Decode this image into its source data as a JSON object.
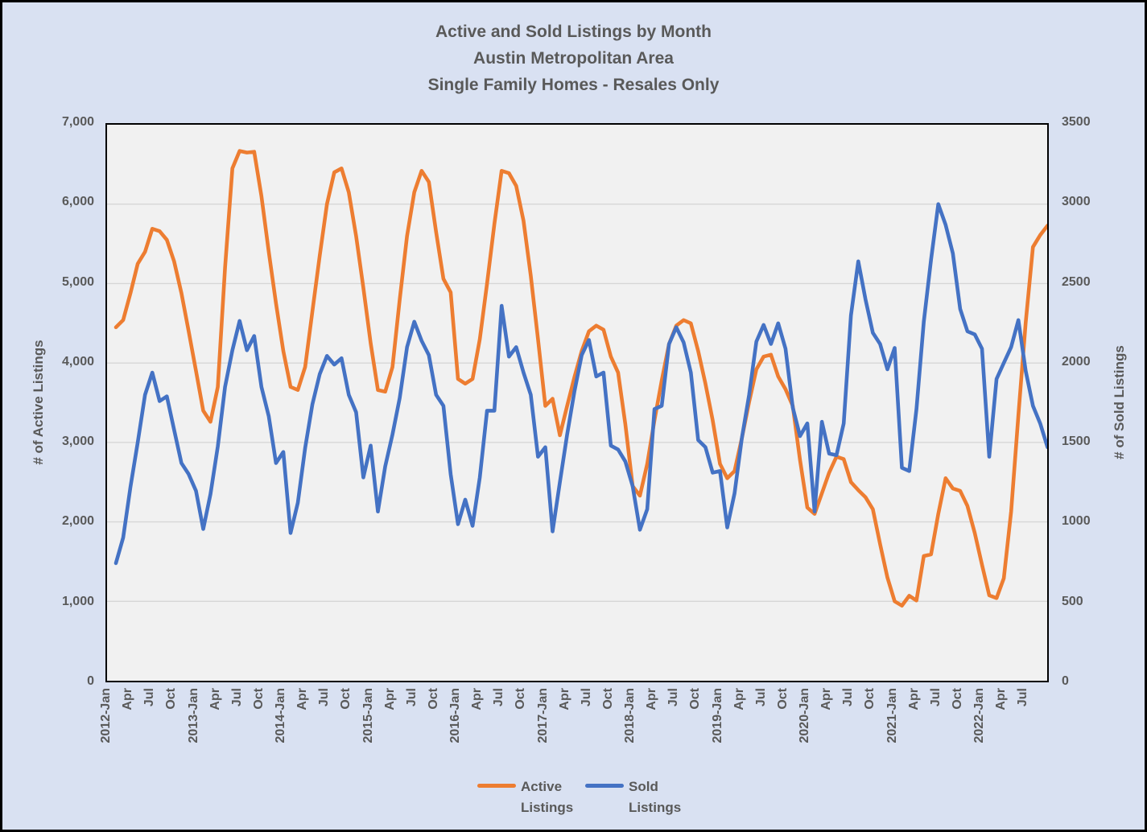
{
  "colors": {
    "page_background": "#d9e1f2",
    "plot_background": "#f1f1f1",
    "gridline": "#d6d6d6",
    "text": "#595959",
    "active_series": "#ED7D31",
    "sold_series": "#4472C4"
  },
  "chart_data": {
    "type": "line",
    "title_lines": [
      "Active and Sold Listings by Month",
      "Austin Metropolitan Area",
      "Single Family Homes - Resales Only"
    ],
    "left_axis": {
      "label": "# of Active Listings",
      "ticks": [
        "7,000",
        "6,000",
        "5,000",
        "4,000",
        "3,000",
        "2,000",
        "1,000",
        "0"
      ],
      "max": 7000
    },
    "right_axis": {
      "label": "# of Sold Listings",
      "ticks": [
        "3500",
        "3000",
        "2500",
        "2000",
        "1500",
        "1000",
        "500",
        "0"
      ],
      "max": 3500
    },
    "x_start_month": "2012-Jan",
    "x_end_month": "2022-Sep",
    "months_per_tick": 3,
    "x_tick_labels": [
      "2012-Jan",
      "Apr",
      "Jul",
      "Oct",
      "2013-Jan",
      "Apr",
      "Jul",
      "Oct",
      "2014-Jan",
      "Apr",
      "Jul",
      "Oct",
      "2015-Jan",
      "Apr",
      "Jul",
      "Oct",
      "2016-Jan",
      "Apr",
      "Jul",
      "Oct",
      "2017-Jan",
      "Apr",
      "Jul",
      "Oct",
      "2018-Jan",
      "Apr",
      "Jul",
      "Oct",
      "2019-Jan",
      "Apr",
      "Jul",
      "Oct",
      "2020-Jan",
      "Apr",
      "Jul",
      "Oct",
      "2021-Jan",
      "Apr",
      "Jul",
      "Oct",
      "2022-Jan",
      "Apr",
      "Jul"
    ],
    "grid": "horizontal-only",
    "legend_position": "bottom",
    "series": [
      {
        "name": "Active Listings",
        "legend_lines": [
          "Active",
          "Listings"
        ],
        "color": "#ED7D31",
        "axis": "left",
        "values": [
          4450,
          4540,
          4880,
          5250,
          5400,
          5690,
          5660,
          5550,
          5280,
          4880,
          4400,
          3900,
          3400,
          3260,
          3700,
          5200,
          6450,
          6670,
          6650,
          6660,
          6100,
          5400,
          4750,
          4150,
          3700,
          3660,
          3950,
          4650,
          5350,
          6000,
          6400,
          6450,
          6150,
          5600,
          4950,
          4250,
          3660,
          3640,
          3950,
          4800,
          5600,
          6150,
          6420,
          6280,
          5650,
          5060,
          4890,
          3800,
          3740,
          3800,
          4300,
          5000,
          5750,
          6420,
          6390,
          6230,
          5790,
          5100,
          4300,
          3460,
          3550,
          3090,
          3460,
          3820,
          4150,
          4400,
          4470,
          4420,
          4080,
          3880,
          3230,
          2450,
          2330,
          2730,
          3280,
          3780,
          4240,
          4470,
          4540,
          4500,
          4150,
          3740,
          3280,
          2730,
          2550,
          2640,
          3050,
          3510,
          3920,
          4080,
          4105,
          3830,
          3670,
          3460,
          2780,
          2180,
          2100,
          2360,
          2620,
          2820,
          2790,
          2500,
          2400,
          2310,
          2160,
          1720,
          1300,
          1000,
          945,
          1070,
          1010,
          1570,
          1590,
          2100,
          2550,
          2420,
          2390,
          2200,
          1860,
          1460,
          1075,
          1040,
          1290,
          2130,
          3340,
          4510,
          5460,
          5610,
          5730
        ]
      },
      {
        "name": "Sold Listings",
        "legend_lines": [
          "Sold",
          "Listings"
        ],
        "color": "#4472C4",
        "axis": "right",
        "values": [
          740,
          900,
          1220,
          1500,
          1800,
          1940,
          1760,
          1790,
          1580,
          1370,
          1300,
          1195,
          955,
          1175,
          1475,
          1850,
          2080,
          2265,
          2080,
          2170,
          1850,
          1665,
          1370,
          1440,
          930,
          1120,
          1465,
          1740,
          1930,
          2045,
          1990,
          2030,
          1800,
          1690,
          1280,
          1480,
          1065,
          1350,
          1550,
          1780,
          2100,
          2260,
          2140,
          2050,
          1800,
          1730,
          1300,
          985,
          1140,
          975,
          1280,
          1700,
          1700,
          2360,
          2040,
          2100,
          1940,
          1800,
          1410,
          1470,
          940,
          1250,
          1550,
          1820,
          2050,
          2145,
          1915,
          1940,
          1480,
          1455,
          1380,
          1225,
          950,
          1080,
          1710,
          1730,
          2120,
          2225,
          2130,
          1940,
          1515,
          1470,
          1310,
          1320,
          965,
          1180,
          1525,
          1800,
          2135,
          2240,
          2120,
          2250,
          2090,
          1720,
          1540,
          1620,
          1065,
          1630,
          1430,
          1420,
          1620,
          2300,
          2640,
          2400,
          2190,
          2120,
          1960,
          2095,
          1340,
          1320,
          1710,
          2260,
          2650,
          3000,
          2870,
          2690,
          2340,
          2200,
          2180,
          2090,
          1410,
          1900,
          2000,
          2100,
          2270,
          1950,
          1730,
          1620,
          1470
        ]
      }
    ]
  }
}
